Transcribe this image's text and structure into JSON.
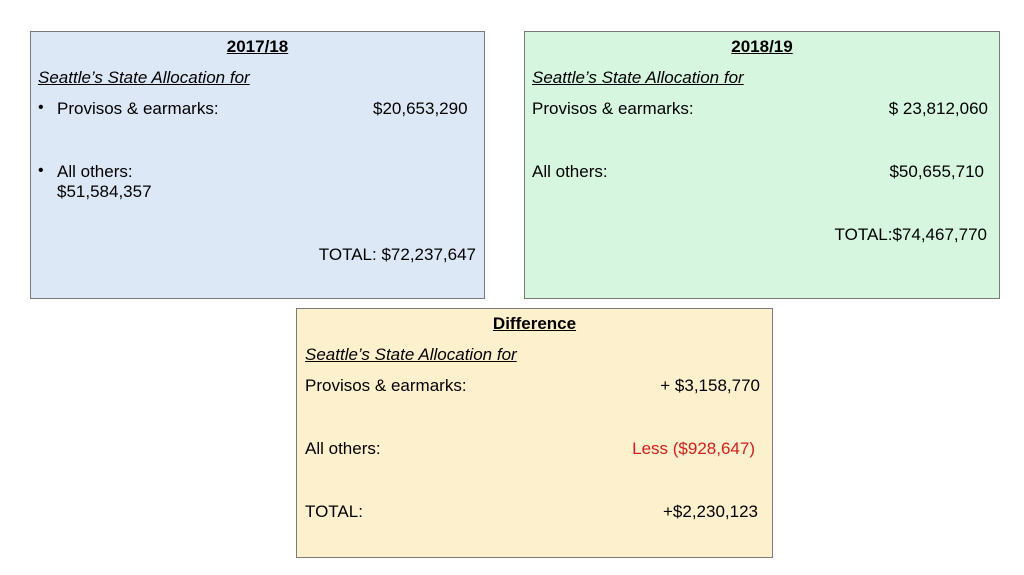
{
  "box_2017": {
    "title": "2017/18",
    "subtitle": "Seattle’s State Allocation for",
    "bullet": "•",
    "provisos_label": "Provisos & earmarks:",
    "provisos_value": "$20,653,290",
    "others_label": "All others:",
    "others_value": "$51,584,357",
    "total": "TOTAL: $72,237,647"
  },
  "box_2018": {
    "title": "2018/19",
    "subtitle": "Seattle’s State Allocation for",
    "provisos_label": "Provisos & earmarks:",
    "provisos_value": "$ 23,812,060",
    "others_label": "All others:",
    "others_value": "$50,655,710",
    "total": "TOTAL:$74,467,770"
  },
  "box_diff": {
    "title": "Difference",
    "subtitle": "Seattle’s State Allocation for",
    "provisos_label": "Provisos & earmarks:",
    "provisos_value": "+ $3,158,770",
    "others_label": "All others:",
    "others_value": "Less ($928,647)",
    "total_label": "TOTAL:",
    "total_value": "+$2,230,123",
    "colors": {
      "negative": "#d11f1f"
    }
  },
  "colors": {
    "box_2017_bg": "#dde8f6",
    "box_2018_bg": "#d6f6e0",
    "box_diff_bg": "#fdf0cc"
  }
}
